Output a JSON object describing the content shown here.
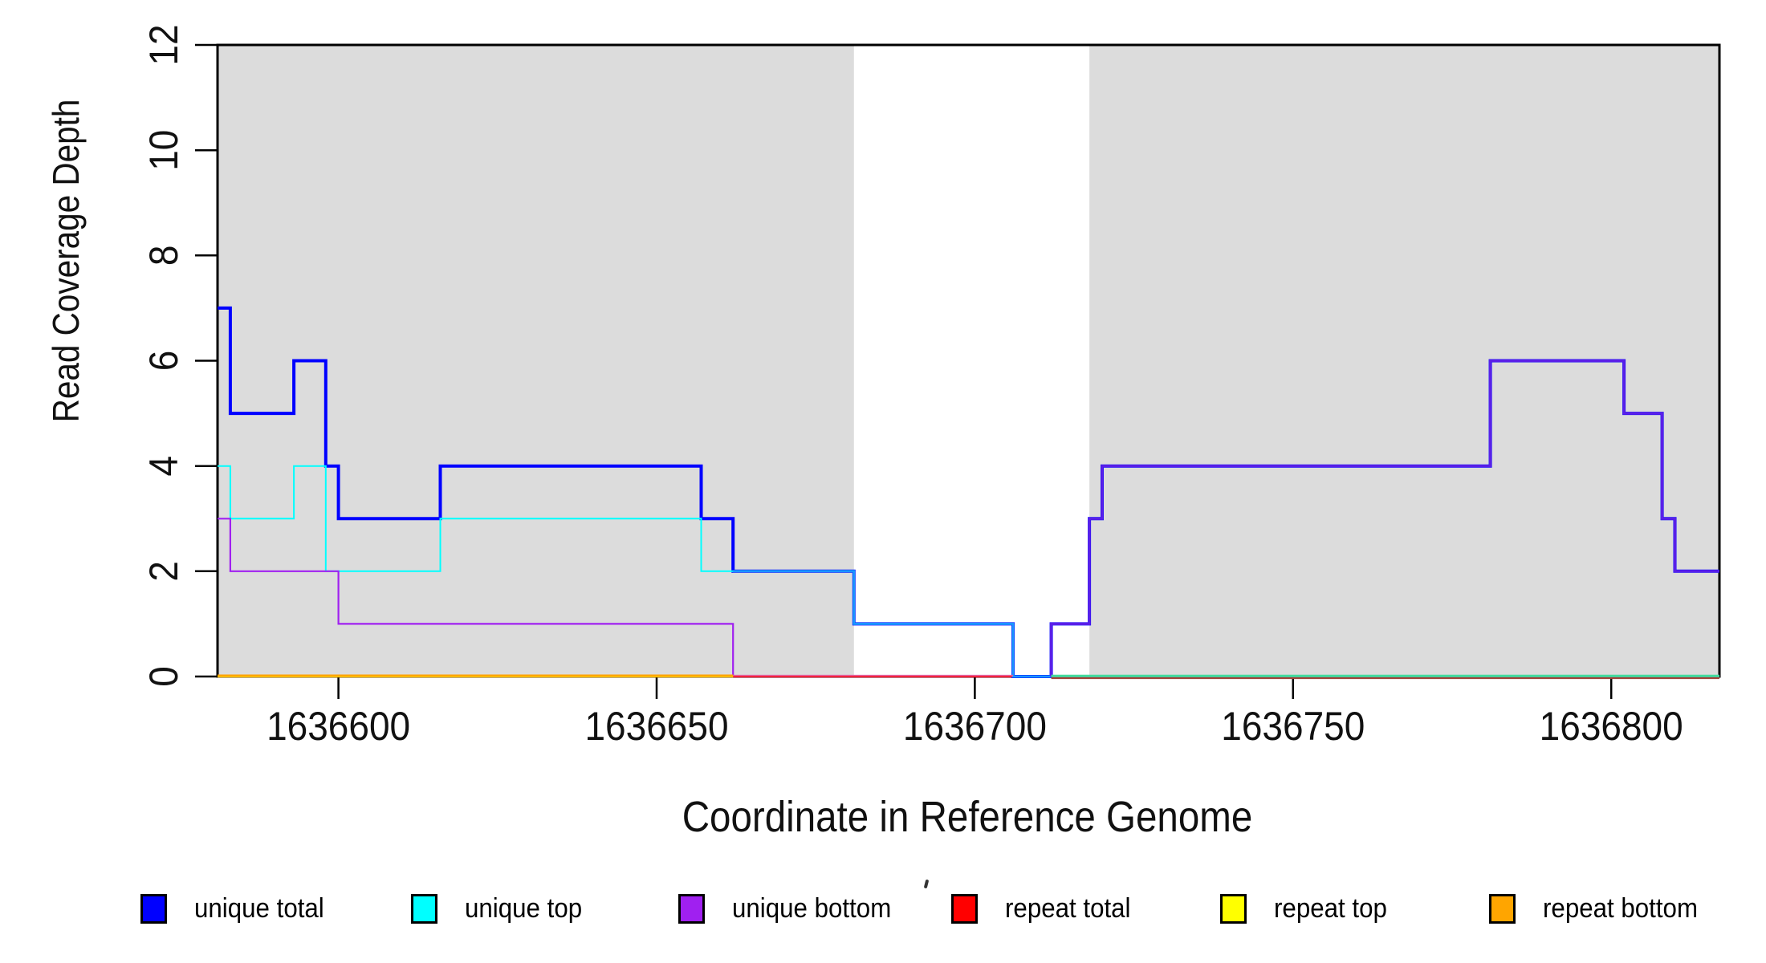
{
  "figure_type": "read-coverage-step-plot",
  "chart_data": {
    "type": "line",
    "step": true,
    "title": "",
    "xlabel": "Coordinate in Reference Genome",
    "ylabel": "Read Coverage Depth",
    "xlim": [
      1636581,
      1636817
    ],
    "ylim": [
      0,
      12
    ],
    "x_ticks": [
      1636600,
      1636650,
      1636700,
      1636750,
      1636800
    ],
    "y_ticks": [
      0,
      2,
      4,
      6,
      8,
      10,
      12
    ],
    "grid": false,
    "legend_position": "bottom",
    "background": "#ffffff",
    "shaded_region_color": "#dcdcdc",
    "shaded_regions": [
      {
        "x0": 1636581,
        "x1": 1636681
      },
      {
        "x0": 1636718,
        "x1": 1636817
      }
    ],
    "series": [
      {
        "name": "unique total",
        "color": "#0000ff",
        "width": 4,
        "points": [
          [
            1636581,
            7
          ],
          [
            1636583,
            5
          ],
          [
            1636593,
            6
          ],
          [
            1636598,
            4
          ],
          [
            1636600,
            3
          ],
          [
            1636616,
            4
          ],
          [
            1636657,
            3
          ],
          [
            1636662,
            2
          ],
          [
            1636681,
            1
          ],
          [
            1636706,
            0
          ],
          [
            1636712,
            1
          ],
          [
            1636718,
            3
          ],
          [
            1636720,
            4
          ],
          [
            1636781,
            6
          ],
          [
            1636802,
            5
          ],
          [
            1636808,
            3
          ],
          [
            1636810,
            2
          ]
        ],
        "x_end": 1636817
      },
      {
        "name": "unique top",
        "color": "#00ffff",
        "width": 2,
        "points": [
          [
            1636581,
            4
          ],
          [
            1636583,
            3
          ],
          [
            1636593,
            4
          ],
          [
            1636598,
            2
          ],
          [
            1636616,
            3
          ],
          [
            1636657,
            2
          ],
          [
            1636681,
            1
          ],
          [
            1636706,
            0
          ]
        ],
        "x_end": 1636817
      },
      {
        "name": "unique bottom",
        "color": "#a020f0",
        "width": 2.2,
        "points": [
          [
            1636581,
            3
          ],
          [
            1636583,
            2
          ],
          [
            1636600,
            1
          ],
          [
            1636662,
            0
          ],
          [
            1636712,
            1
          ],
          [
            1636718,
            3
          ],
          [
            1636720,
            4
          ],
          [
            1636781,
            6
          ],
          [
            1636802,
            5
          ],
          [
            1636808,
            3
          ],
          [
            1636810,
            2
          ]
        ],
        "x_end": 1636817
      },
      {
        "name": "repeat total",
        "color": "#ff0000",
        "width": 2.2,
        "points": [
          [
            1636581,
            0
          ]
        ],
        "x_end": 1636706
      },
      {
        "name": "repeat top",
        "color": "#ffff00",
        "width": 2.2,
        "points": [
          [
            1636581,
            0
          ]
        ],
        "x_end": 1636662
      },
      {
        "name": "repeat bottom",
        "color": "#ffa500",
        "width": 3,
        "dy": -1,
        "points": [
          [
            1636581,
            0
          ]
        ],
        "x_end": 1636662
      }
    ],
    "overlap_blend_segments": [
      {
        "name": "unique-total-plus-top-blend",
        "color": "#1b96ff",
        "width": 3,
        "points": [
          [
            1636662,
            2
          ],
          [
            1636681,
            1
          ],
          [
            1636706,
            0
          ]
        ],
        "x_end": 1636712
      },
      {
        "name": "unique-total-plus-bottom-blend",
        "color": "#5a1fe8",
        "width": 3.2,
        "points": [
          [
            1636712,
            0
          ],
          [
            1636712,
            1
          ],
          [
            1636718,
            3
          ],
          [
            1636720,
            4
          ],
          [
            1636781,
            6
          ],
          [
            1636802,
            5
          ],
          [
            1636808,
            3
          ],
          [
            1636810,
            2
          ]
        ],
        "x_end": 1636817
      },
      {
        "name": "repeat-total-over-unique-bottom-zero",
        "color": "#e2619f",
        "width": 1.8,
        "dy": -1.2,
        "points": [
          [
            1636662,
            0
          ]
        ],
        "x_end": 1636706
      },
      {
        "name": "repeat-zero-dark-red-right",
        "color": "#a04238",
        "width": 2.4,
        "dy": 1.9,
        "points": [
          [
            1636712,
            0
          ]
        ],
        "x_end": 1636817
      },
      {
        "name": "repeat-top-over-unique-top-zero-green",
        "color": "#45db9c",
        "width": 2.8,
        "dy": -0.8,
        "points": [
          [
            1636712,
            0
          ]
        ],
        "x_end": 1636817
      }
    ]
  }
}
